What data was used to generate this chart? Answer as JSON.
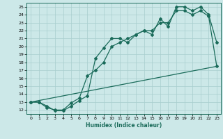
{
  "xlabel": "Humidex (Indice chaleur)",
  "bg_color": "#cce8e8",
  "line_color": "#1a6b5a",
  "grid_color": "#a8cece",
  "xlim": [
    -0.5,
    23.5
  ],
  "ylim": [
    11.5,
    25.5
  ],
  "yticks": [
    12,
    13,
    14,
    15,
    16,
    17,
    18,
    19,
    20,
    21,
    22,
    23,
    24,
    25
  ],
  "xticks": [
    0,
    1,
    2,
    3,
    4,
    5,
    6,
    7,
    8,
    9,
    10,
    11,
    12,
    13,
    14,
    15,
    16,
    17,
    18,
    19,
    20,
    21,
    22,
    23
  ],
  "line1_x": [
    0,
    1,
    2,
    3,
    4,
    5,
    6,
    7,
    8,
    9,
    10,
    11,
    12,
    13,
    14,
    15,
    16,
    17,
    18,
    19,
    20,
    21,
    22,
    23
  ],
  "line1_y": [
    13.0,
    13.0,
    12.5,
    11.9,
    11.9,
    12.5,
    13.2,
    13.8,
    18.5,
    19.8,
    21.0,
    21.0,
    20.5,
    21.5,
    22.0,
    21.5,
    23.5,
    22.5,
    25.0,
    25.0,
    24.5,
    25.0,
    24.0,
    20.5
  ],
  "line2_x": [
    0,
    1,
    2,
    3,
    4,
    5,
    6,
    7,
    8,
    9,
    10,
    11,
    12,
    13,
    14,
    15,
    16,
    17,
    18,
    19,
    20,
    21,
    22,
    23
  ],
  "line2_y": [
    13.0,
    13.0,
    12.3,
    12.0,
    12.0,
    12.9,
    13.5,
    16.3,
    17.0,
    18.0,
    20.0,
    20.5,
    21.0,
    21.5,
    22.0,
    22.0,
    23.0,
    23.0,
    24.5,
    24.5,
    24.0,
    24.5,
    23.8,
    17.5
  ],
  "line3_x": [
    0,
    23
  ],
  "line3_y": [
    13.0,
    17.5
  ]
}
